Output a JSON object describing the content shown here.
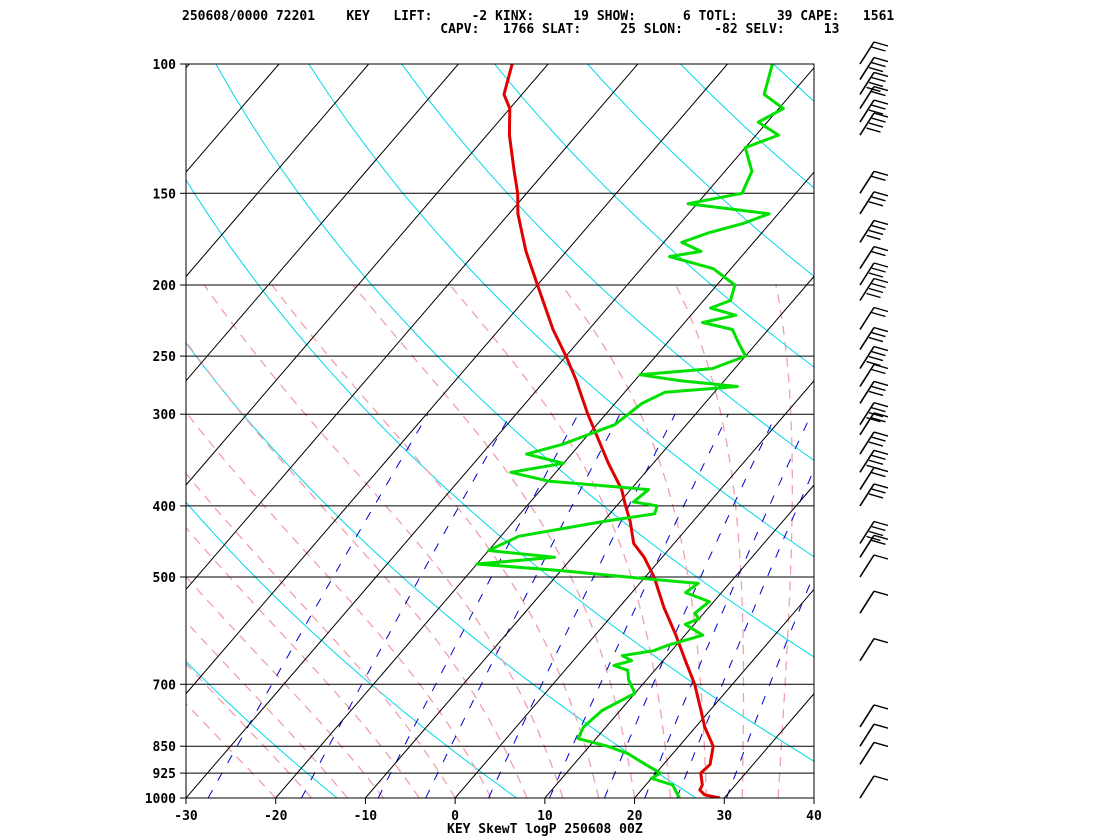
{
  "header": {
    "line1": "250608/0000 72201    KEY   LIFT:     -2 KINX:     19 SHOW:      6 TOTL:     39 CAPE:   1561",
    "line2": "                                 CAPV:   1766 SLAT:     25 SLON:    -82 SELV:     13"
  },
  "footer": "KEY SkewT logP 250608 00Z",
  "chart_data": {
    "type": "line",
    "title": "KEY SkewT logP 250608 00Z",
    "xlabel": "",
    "ylabel": "",
    "x_ticks": [
      -30,
      -20,
      -10,
      0,
      10,
      20,
      30,
      40
    ],
    "pressure_ticks": [
      100,
      150,
      200,
      250,
      300,
      400,
      500,
      700,
      850,
      925,
      1000
    ],
    "xlim": [
      -30,
      40
    ],
    "plim": [
      1000,
      100
    ],
    "y_scale": "log",
    "grid": true,
    "colors": {
      "temperature": "#e00000",
      "dewpoint": "#00e000",
      "isotherm": "#000000",
      "dry_adiabat": "#00d8e8",
      "moist_adiabat": "#f0a0b0",
      "mixing_ratio": "#0000cc",
      "isobar": "#000000"
    },
    "series": [
      {
        "key": "temperature",
        "points": [
          [
            1000,
            29.5
          ],
          [
            990,
            27.5
          ],
          [
            975,
            26.5
          ],
          [
            960,
            26.3
          ],
          [
            925,
            25.0
          ],
          [
            900,
            25.2
          ],
          [
            850,
            23.8
          ],
          [
            800,
            21.0
          ],
          [
            750,
            18.5
          ],
          [
            700,
            15.8
          ],
          [
            650,
            12.5
          ],
          [
            600,
            9.0
          ],
          [
            550,
            5.0
          ],
          [
            500,
            1.0
          ],
          [
            470,
            -2.0
          ],
          [
            450,
            -4.5
          ],
          [
            420,
            -7.0
          ],
          [
            400,
            -9.0
          ],
          [
            380,
            -11.0
          ],
          [
            350,
            -15.0
          ],
          [
            300,
            -22.0
          ],
          [
            270,
            -26.5
          ],
          [
            250,
            -30.0
          ],
          [
            230,
            -34.0
          ],
          [
            200,
            -40.0
          ],
          [
            180,
            -44.5
          ],
          [
            160,
            -49.0
          ],
          [
            150,
            -51.0
          ],
          [
            140,
            -53.5
          ],
          [
            125,
            -57.5
          ],
          [
            115,
            -60.0
          ],
          [
            110,
            -62.0
          ],
          [
            100,
            -64.0
          ]
        ]
      },
      {
        "key": "dewpoint",
        "points": [
          [
            1000,
            25.0
          ],
          [
            980,
            24.0
          ],
          [
            960,
            23.0
          ],
          [
            940,
            20.0
          ],
          [
            925,
            20.5
          ],
          [
            900,
            18.0
          ],
          [
            870,
            15.0
          ],
          [
            850,
            12.0
          ],
          [
            830,
            8.0
          ],
          [
            800,
            7.5
          ],
          [
            760,
            8.0
          ],
          [
            720,
            10.0
          ],
          [
            690,
            8.0
          ],
          [
            670,
            7.0
          ],
          [
            660,
            5.0
          ],
          [
            650,
            6.5
          ],
          [
            640,
            5.0
          ],
          [
            630,
            8.0
          ],
          [
            620,
            9.0
          ],
          [
            600,
            12.0
          ],
          [
            580,
            9.0
          ],
          [
            570,
            10.0
          ],
          [
            560,
            9.0
          ],
          [
            540,
            9.5
          ],
          [
            525,
            6.0
          ],
          [
            510,
            6.5
          ],
          [
            500,
            -2.0
          ],
          [
            490,
            -10.0
          ],
          [
            480,
            -20.0
          ],
          [
            470,
            -12.0
          ],
          [
            460,
            -20.0
          ],
          [
            440,
            -18.0
          ],
          [
            420,
            -10.0
          ],
          [
            410,
            -5.0
          ],
          [
            400,
            -5.5
          ],
          [
            395,
            -8.5
          ],
          [
            380,
            -8.0
          ],
          [
            370,
            -20.0
          ],
          [
            360,
            -25.0
          ],
          [
            350,
            -20.0
          ],
          [
            340,
            -25.0
          ],
          [
            330,
            -22.0
          ],
          [
            310,
            -18.0
          ],
          [
            290,
            -17.0
          ],
          [
            280,
            -15.5
          ],
          [
            275,
            -8.0
          ],
          [
            270,
            -15.0
          ],
          [
            265,
            -20.0
          ],
          [
            260,
            -12.5
          ],
          [
            250,
            -10.0
          ],
          [
            240,
            -12.0
          ],
          [
            230,
            -14.0
          ],
          [
            225,
            -18.0
          ],
          [
            220,
            -15.0
          ],
          [
            215,
            -18.5
          ],
          [
            210,
            -17.0
          ],
          [
            200,
            -18.0
          ],
          [
            190,
            -22.0
          ],
          [
            183,
            -28.0
          ],
          [
            180,
            -25.0
          ],
          [
            175,
            -28.0
          ],
          [
            170,
            -26.0
          ],
          [
            165,
            -23.0
          ],
          [
            160,
            -21.0
          ],
          [
            155,
            -31.0
          ],
          [
            150,
            -26.0
          ],
          [
            140,
            -27.0
          ],
          [
            130,
            -30.0
          ],
          [
            125,
            -27.5
          ],
          [
            120,
            -31.0
          ],
          [
            115,
            -29.5
          ],
          [
            110,
            -33.0
          ],
          [
            100,
            -35.0
          ]
        ]
      }
    ],
    "wind_barbs_hpa": [
      100,
      105,
      110,
      115,
      120,
      125,
      150,
      160,
      175,
      190,
      200,
      210,
      230,
      245,
      260,
      275,
      290,
      310,
      320,
      340,
      360,
      380,
      400,
      450,
      470,
      500,
      560,
      650,
      800,
      850,
      900,
      1000
    ]
  }
}
